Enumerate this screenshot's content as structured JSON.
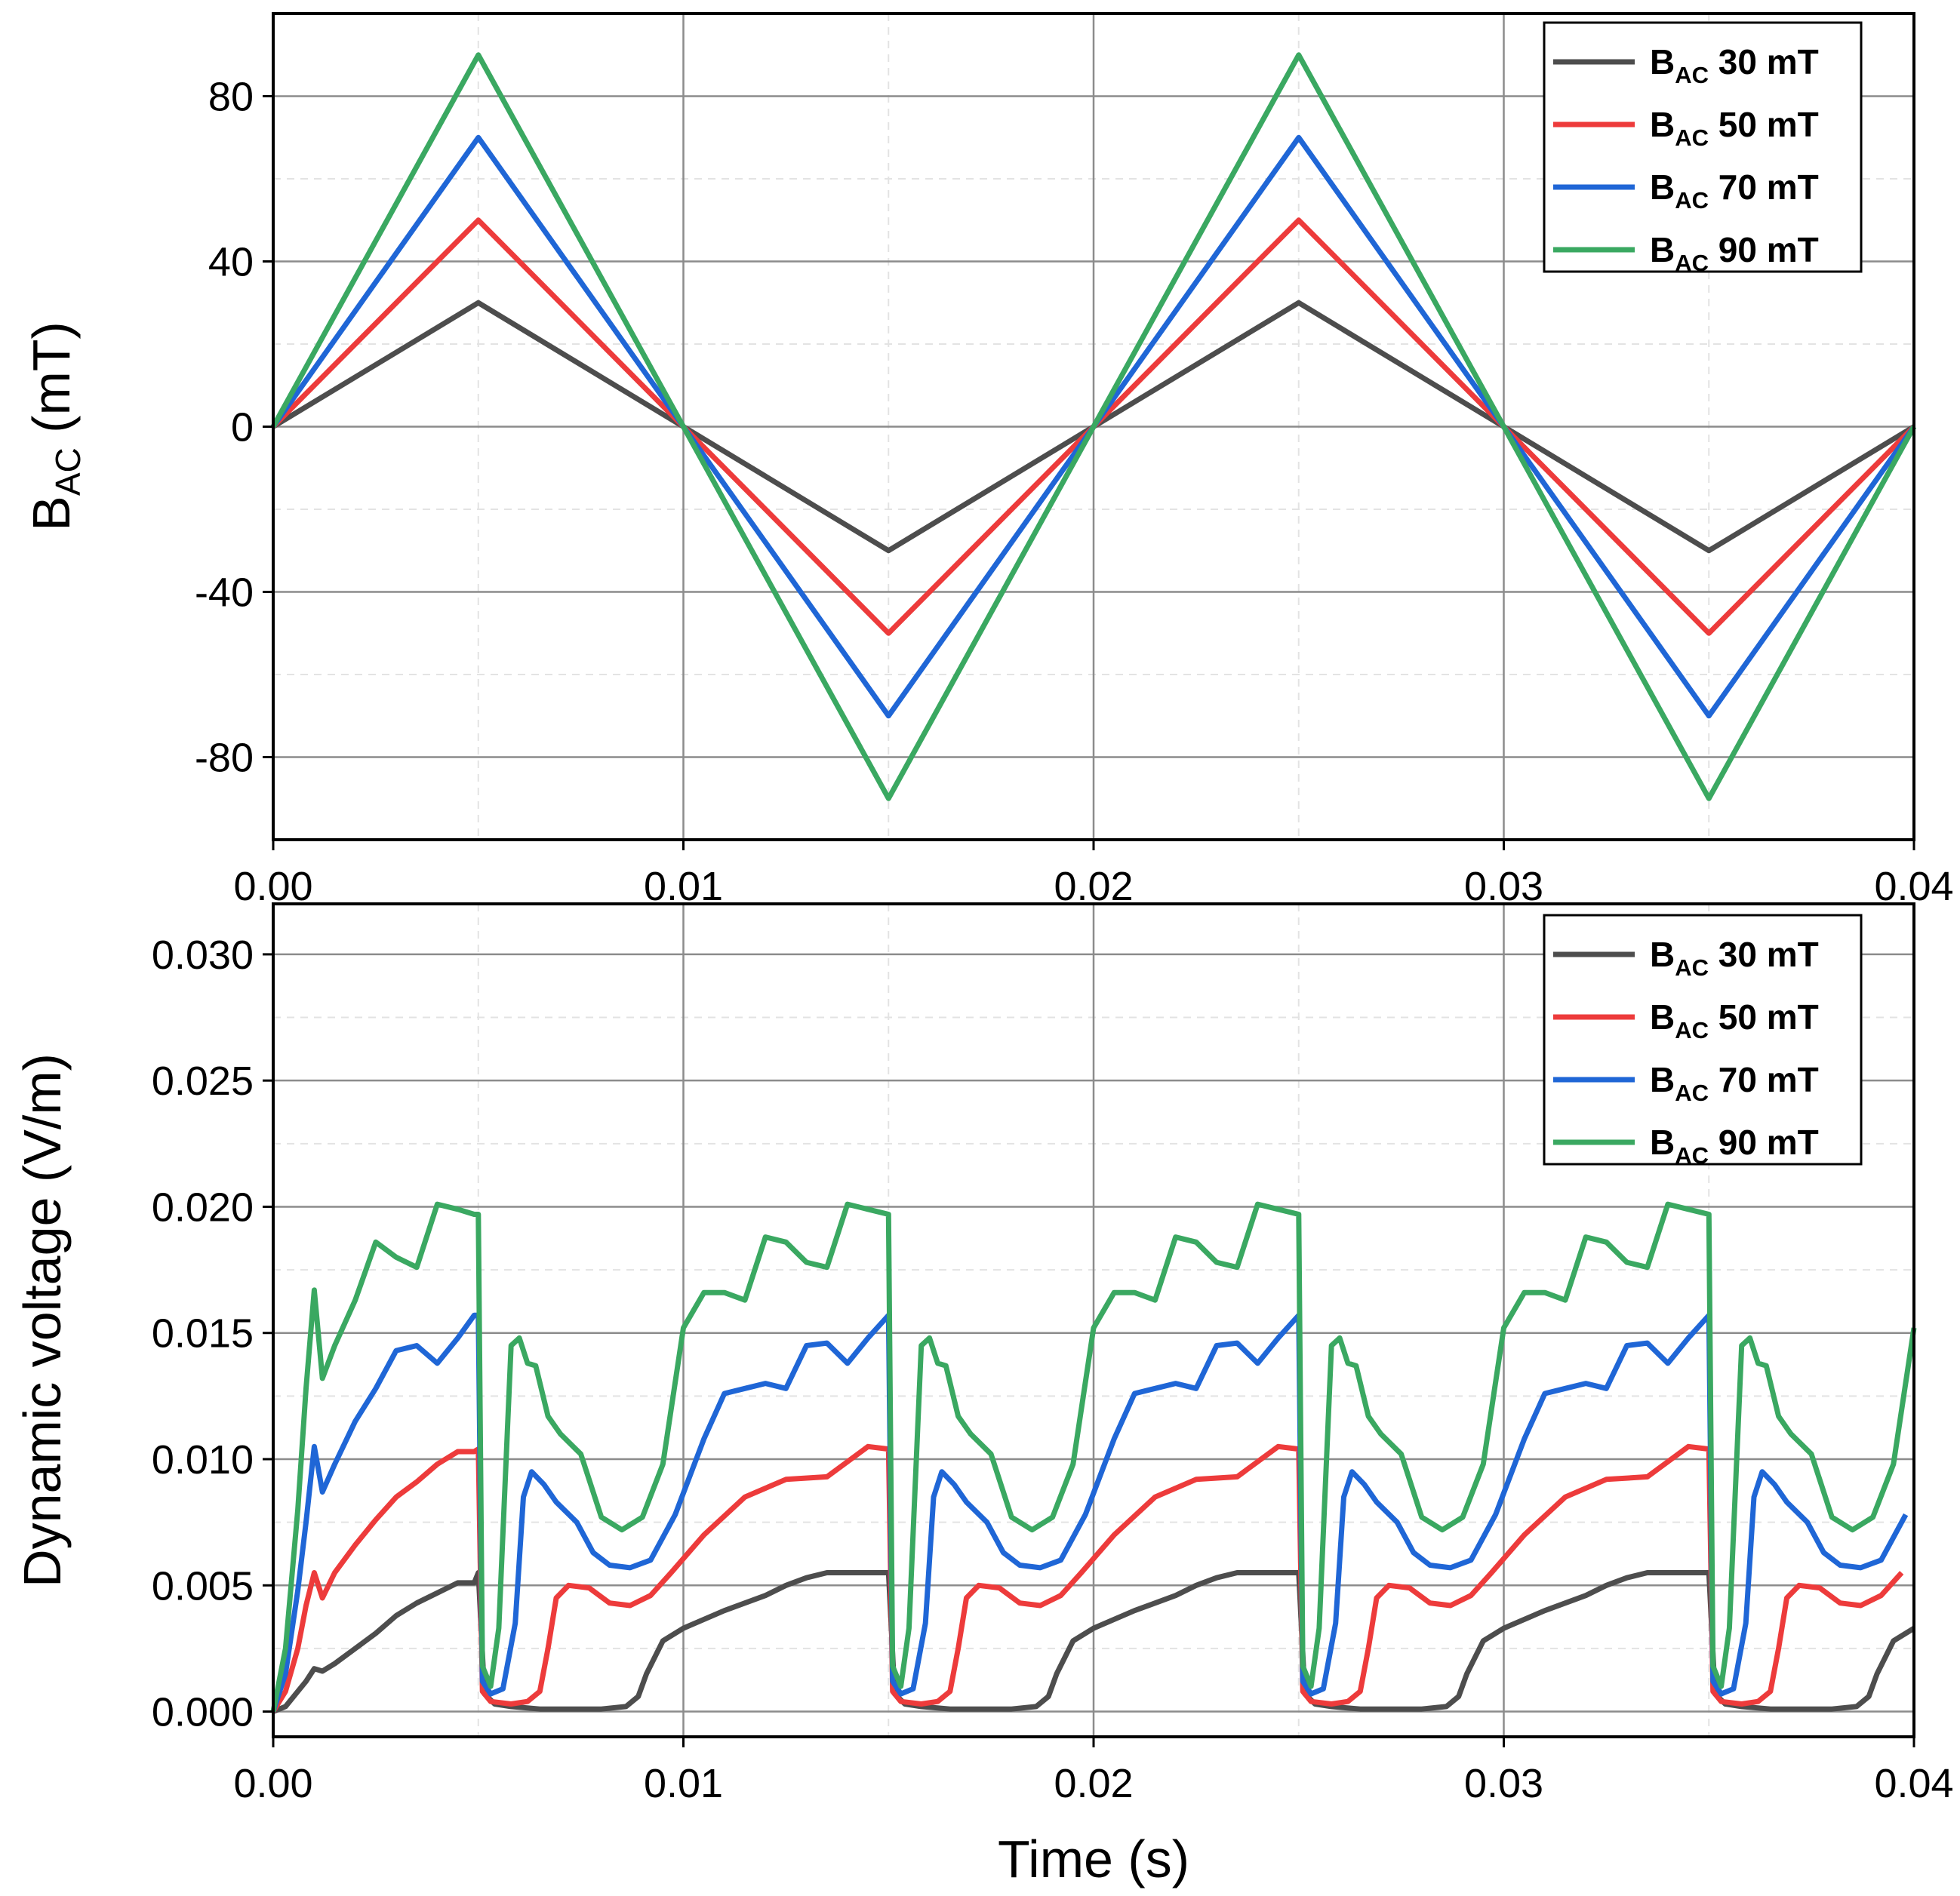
{
  "chart_data": [
    {
      "type": "line",
      "id": "top",
      "ylabel_main": "B",
      "ylabel_sub": "AC",
      "ylabel_unit": " (mT)",
      "xlabel": "",
      "xlim": [
        0,
        0.04
      ],
      "ylim": [
        -100,
        100
      ],
      "xticks": [
        "0.00",
        "0.01",
        "0.02",
        "0.03",
        "0.04"
      ],
      "yticks": [
        "80",
        "40",
        "0",
        "-40",
        "-80"
      ],
      "ytick_values": [
        80,
        40,
        0,
        -40,
        -80
      ],
      "grid": true,
      "legend_position": "top-right",
      "series": [
        {
          "name_main": "B",
          "name_sub": "AC",
          "name_rest": " 30 mT",
          "color": "#4d4d4d",
          "amplitude": 30,
          "x": [
            0,
            0.005,
            0.01,
            0.015,
            0.02,
            0.025,
            0.03,
            0.035,
            0.04
          ],
          "y": [
            0,
            30,
            0,
            -30,
            0,
            30,
            0,
            -30,
            0
          ]
        },
        {
          "name_main": "B",
          "name_sub": "AC",
          "name_rest": " 50 mT",
          "color": "#ed3b3b",
          "amplitude": 50,
          "x": [
            0,
            0.005,
            0.01,
            0.015,
            0.02,
            0.025,
            0.03,
            0.035,
            0.04
          ],
          "y": [
            0,
            50,
            0,
            -50,
            0,
            50,
            0,
            -50,
            0
          ]
        },
        {
          "name_main": "B",
          "name_sub": "AC",
          "name_rest": " 70 mT",
          "color": "#1f66d6",
          "amplitude": 70,
          "x": [
            0,
            0.005,
            0.01,
            0.015,
            0.02,
            0.025,
            0.03,
            0.035,
            0.04
          ],
          "y": [
            0,
            70,
            0,
            -70,
            0,
            70,
            0,
            -70,
            0
          ]
        },
        {
          "name_main": "B",
          "name_sub": "AC",
          "name_rest": " 90 mT",
          "color": "#3aa861",
          "amplitude": 90,
          "x": [
            0,
            0.005,
            0.01,
            0.015,
            0.02,
            0.025,
            0.03,
            0.035,
            0.04
          ],
          "y": [
            0,
            90,
            0,
            -90,
            0,
            90,
            0,
            -90,
            0
          ]
        }
      ]
    },
    {
      "type": "line",
      "id": "bottom",
      "ylabel": "Dynamic voltage (V/m)",
      "xlabel": "Time (s)",
      "xlim": [
        0,
        0.04
      ],
      "ylim": [
        -0.001,
        0.032
      ],
      "xticks": [
        "0.00",
        "0.01",
        "0.02",
        "0.03",
        "0.04"
      ],
      "yticks": [
        "0.030",
        "0.025",
        "0.020",
        "0.015",
        "0.010",
        "0.005",
        "0.000"
      ],
      "ytick_values": [
        0.03,
        0.025,
        0.02,
        0.015,
        0.01,
        0.005,
        0.0
      ],
      "grid": true,
      "legend_position": "top-right",
      "period": 0.01,
      "series": [
        {
          "name_main": "B",
          "name_sub": "AC",
          "name_rest": " 30 mT",
          "color": "#4d4d4d",
          "first_cycle": {
            "x": [
              0,
              0.0003,
              0.0006,
              0.0008,
              0.001,
              0.0012,
              0.0015,
              0.002,
              0.0025,
              0.003,
              0.0035,
              0.004,
              0.0045,
              0.0049
            ],
            "y": [
              0,
              0.0002,
              0.0008,
              0.0012,
              0.0017,
              0.0016,
              0.0019,
              0.0025,
              0.0031,
              0.0038,
              0.0043,
              0.0047,
              0.0051,
              0.0051
            ]
          },
          "cycle": {
            "x": [
              0,
              0.00015,
              0.0004,
              0.0008,
              0.0015,
              0.002,
              0.003,
              0.0036,
              0.0039,
              0.0041,
              0.0045,
              0.005,
              0.006,
              0.007,
              0.0075,
              0.008,
              0.0085,
              0.009,
              0.0095,
              0.01
            ],
            "y": [
              0.0055,
              0.0007,
              0.0003,
              0.0002,
              0.0001,
              0.0001,
              0.0001,
              0.0002,
              0.0006,
              0.0015,
              0.0028,
              0.0033,
              0.004,
              0.0046,
              0.005,
              0.0053,
              0.0055,
              0.0055,
              0.0055,
              0.0055
            ]
          }
        },
        {
          "name_main": "B",
          "name_sub": "AC",
          "name_rest": " 50 mT",
          "color": "#ed3b3b",
          "first_cycle": {
            "x": [
              0,
              0.0003,
              0.0006,
              0.0008,
              0.001,
              0.0012,
              0.0015,
              0.002,
              0.0025,
              0.003,
              0.0035,
              0.004,
              0.0045,
              0.0049
            ],
            "y": [
              0,
              0.0008,
              0.0025,
              0.0042,
              0.0055,
              0.0045,
              0.0055,
              0.0066,
              0.0076,
              0.0085,
              0.0091,
              0.0098,
              0.0103,
              0.0103
            ]
          },
          "cycle": {
            "x": [
              0,
              0.0001,
              0.0003,
              0.0008,
              0.0012,
              0.0015,
              0.0017,
              0.0019,
              0.0022,
              0.0027,
              0.0032,
              0.0037,
              0.0042,
              0.0047,
              0.0055,
              0.0065,
              0.0075,
              0.0085,
              0.0095,
              0.01
            ],
            "y": [
              0.0104,
              0.0008,
              0.0004,
              0.0003,
              0.0004,
              0.0008,
              0.0025,
              0.0045,
              0.005,
              0.0049,
              0.0043,
              0.0042,
              0.0046,
              0.0055,
              0.007,
              0.0085,
              0.0092,
              0.0093,
              0.0105,
              0.0104
            ]
          }
        },
        {
          "name_main": "B",
          "name_sub": "AC",
          "name_rest": " 70 mT",
          "color": "#1f66d6",
          "first_cycle": {
            "x": [
              0,
              0.0003,
              0.0006,
              0.0008,
              0.001,
              0.0012,
              0.0015,
              0.002,
              0.0025,
              0.003,
              0.0035,
              0.004,
              0.0045,
              0.0049
            ],
            "y": [
              0,
              0.0015,
              0.0048,
              0.0075,
              0.0105,
              0.0087,
              0.0098,
              0.0115,
              0.0128,
              0.0143,
              0.0145,
              0.0138,
              0.0148,
              0.0157
            ]
          },
          "cycle": {
            "x": [
              0,
              0.0001,
              0.0003,
              0.0006,
              0.0009,
              0.0011,
              0.0013,
              0.0016,
              0.0019,
              0.0024,
              0.0028,
              0.0032,
              0.0037,
              0.0042,
              0.0048,
              0.0055,
              0.006,
              0.0065,
              0.007,
              0.0075,
              0.008,
              0.0085,
              0.009,
              0.0095,
              0.01
            ],
            "y": [
              0.0157,
              0.0012,
              0.0007,
              0.0009,
              0.0035,
              0.0085,
              0.0095,
              0.009,
              0.0083,
              0.0075,
              0.0063,
              0.0058,
              0.0057,
              0.006,
              0.0078,
              0.0108,
              0.0126,
              0.0128,
              0.013,
              0.0128,
              0.0145,
              0.0146,
              0.0138,
              0.0148,
              0.0157
            ]
          }
        },
        {
          "name_main": "B",
          "name_sub": "AC",
          "name_rest": " 90 mT",
          "color": "#3aa861",
          "first_cycle": {
            "x": [
              0,
              0.0003,
              0.0006,
              0.0008,
              0.001,
              0.0012,
              0.0015,
              0.002,
              0.0025,
              0.003,
              0.0035,
              0.004,
              0.0045,
              0.0049
            ],
            "y": [
              0,
              0.0025,
              0.008,
              0.0128,
              0.0167,
              0.0132,
              0.0145,
              0.0163,
              0.0186,
              0.018,
              0.0176,
              0.0201,
              0.0199,
              0.0197
            ]
          },
          "cycle": {
            "x": [
              0,
              0.0001,
              0.0003,
              0.0005,
              0.0008,
              0.001,
              0.0012,
              0.0014,
              0.0017,
              0.002,
              0.0025,
              0.003,
              0.0035,
              0.004,
              0.0045,
              0.005,
              0.0055,
              0.006,
              0.0065,
              0.007,
              0.0075,
              0.008,
              0.0085,
              0.009,
              0.0095,
              0.01
            ],
            "y": [
              0.0197,
              0.0018,
              0.001,
              0.0033,
              0.0145,
              0.0148,
              0.0138,
              0.0137,
              0.0117,
              0.011,
              0.0102,
              0.0077,
              0.0072,
              0.0077,
              0.0098,
              0.0152,
              0.0166,
              0.0166,
              0.0163,
              0.0188,
              0.0186,
              0.0178,
              0.0176,
              0.0201,
              0.0199,
              0.0197
            ]
          }
        }
      ]
    }
  ]
}
